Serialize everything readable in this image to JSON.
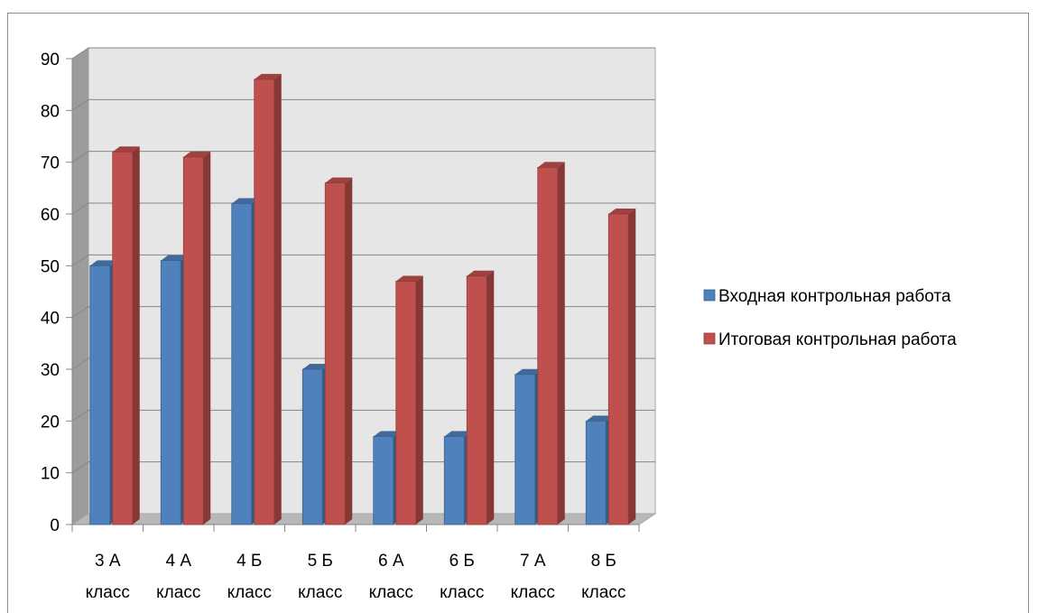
{
  "chart_data": {
    "type": "bar",
    "categories": [
      [
        "3 А",
        "класс"
      ],
      [
        "4 А",
        "класс"
      ],
      [
        "4 Б",
        "класс"
      ],
      [
        "5 Б",
        "класс"
      ],
      [
        "6 А",
        "класс"
      ],
      [
        "6 Б",
        "класс"
      ],
      [
        "7 А",
        "класс"
      ],
      [
        "8 Б",
        "класс"
      ]
    ],
    "series": [
      {
        "name": "Входная контрольная работа",
        "values": [
          50,
          51,
          62,
          30,
          17,
          17,
          29,
          20
        ],
        "color": "#4f81bd"
      },
      {
        "name": "Итоговая контрольная работа",
        "values": [
          72,
          71,
          86,
          66,
          47,
          48,
          69,
          60
        ],
        "color": "#c0504d"
      }
    ],
    "ylim": [
      0,
      90
    ],
    "ytick_step": 10,
    "grid": true,
    "legend_position": "right",
    "style": "3d-column"
  }
}
